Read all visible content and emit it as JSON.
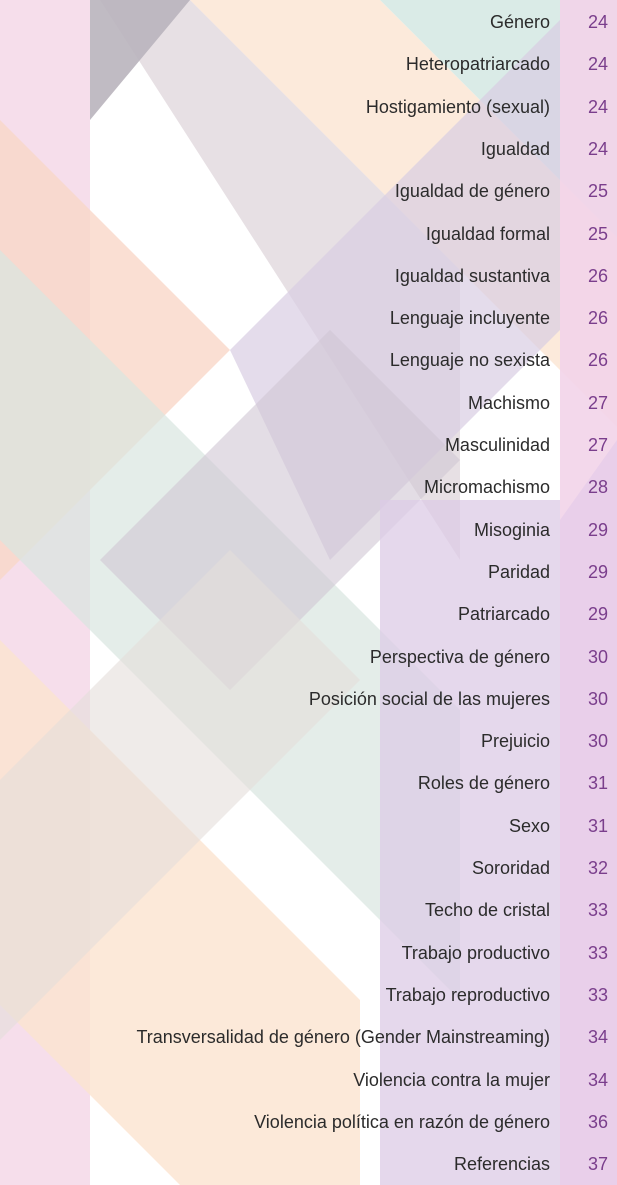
{
  "toc": {
    "entries": [
      {
        "title": "Género",
        "page": "24"
      },
      {
        "title": "Heteropatriarcado",
        "page": "24"
      },
      {
        "title": "Hostigamiento (sexual)",
        "page": "24"
      },
      {
        "title": "Igualdad",
        "page": "24"
      },
      {
        "title": "Igualdad de género",
        "page": "25"
      },
      {
        "title": "Igualdad formal",
        "page": "25"
      },
      {
        "title": "Igualdad sustantiva",
        "page": "26"
      },
      {
        "title": "Lenguaje incluyente",
        "page": "26"
      },
      {
        "title": "Lenguaje no sexista",
        "page": "26"
      },
      {
        "title": "Machismo",
        "page": "27"
      },
      {
        "title": "Masculinidad",
        "page": "27"
      },
      {
        "title": "Micromachismo",
        "page": "28"
      },
      {
        "title": "Misoginia",
        "page": "29"
      },
      {
        "title": "Paridad",
        "page": "29"
      },
      {
        "title": "Patriarcado",
        "page": "29"
      },
      {
        "title": "Perspectiva de género",
        "page": "30"
      },
      {
        "title": "Posición social de las mujeres",
        "page": "30"
      },
      {
        "title": "Prejuicio",
        "page": "30"
      },
      {
        "title": "Roles de género",
        "page": "31"
      },
      {
        "title": "Sexo",
        "page": "31"
      },
      {
        "title": "Sororidad",
        "page": "32"
      },
      {
        "title": "Techo de cristal",
        "page": "33"
      },
      {
        "title": "Trabajo productivo",
        "page": "33"
      },
      {
        "title": "Trabajo reproductivo",
        "page": "33"
      },
      {
        "title": "Transversalidad de género (Gender Mainstreaming)",
        "page": "34"
      },
      {
        "title": "Violencia contra la mujer",
        "page": "34"
      },
      {
        "title": "Violencia política en razón de género",
        "page": "36"
      },
      {
        "title": "Referencias",
        "page": "37"
      }
    ]
  }
}
